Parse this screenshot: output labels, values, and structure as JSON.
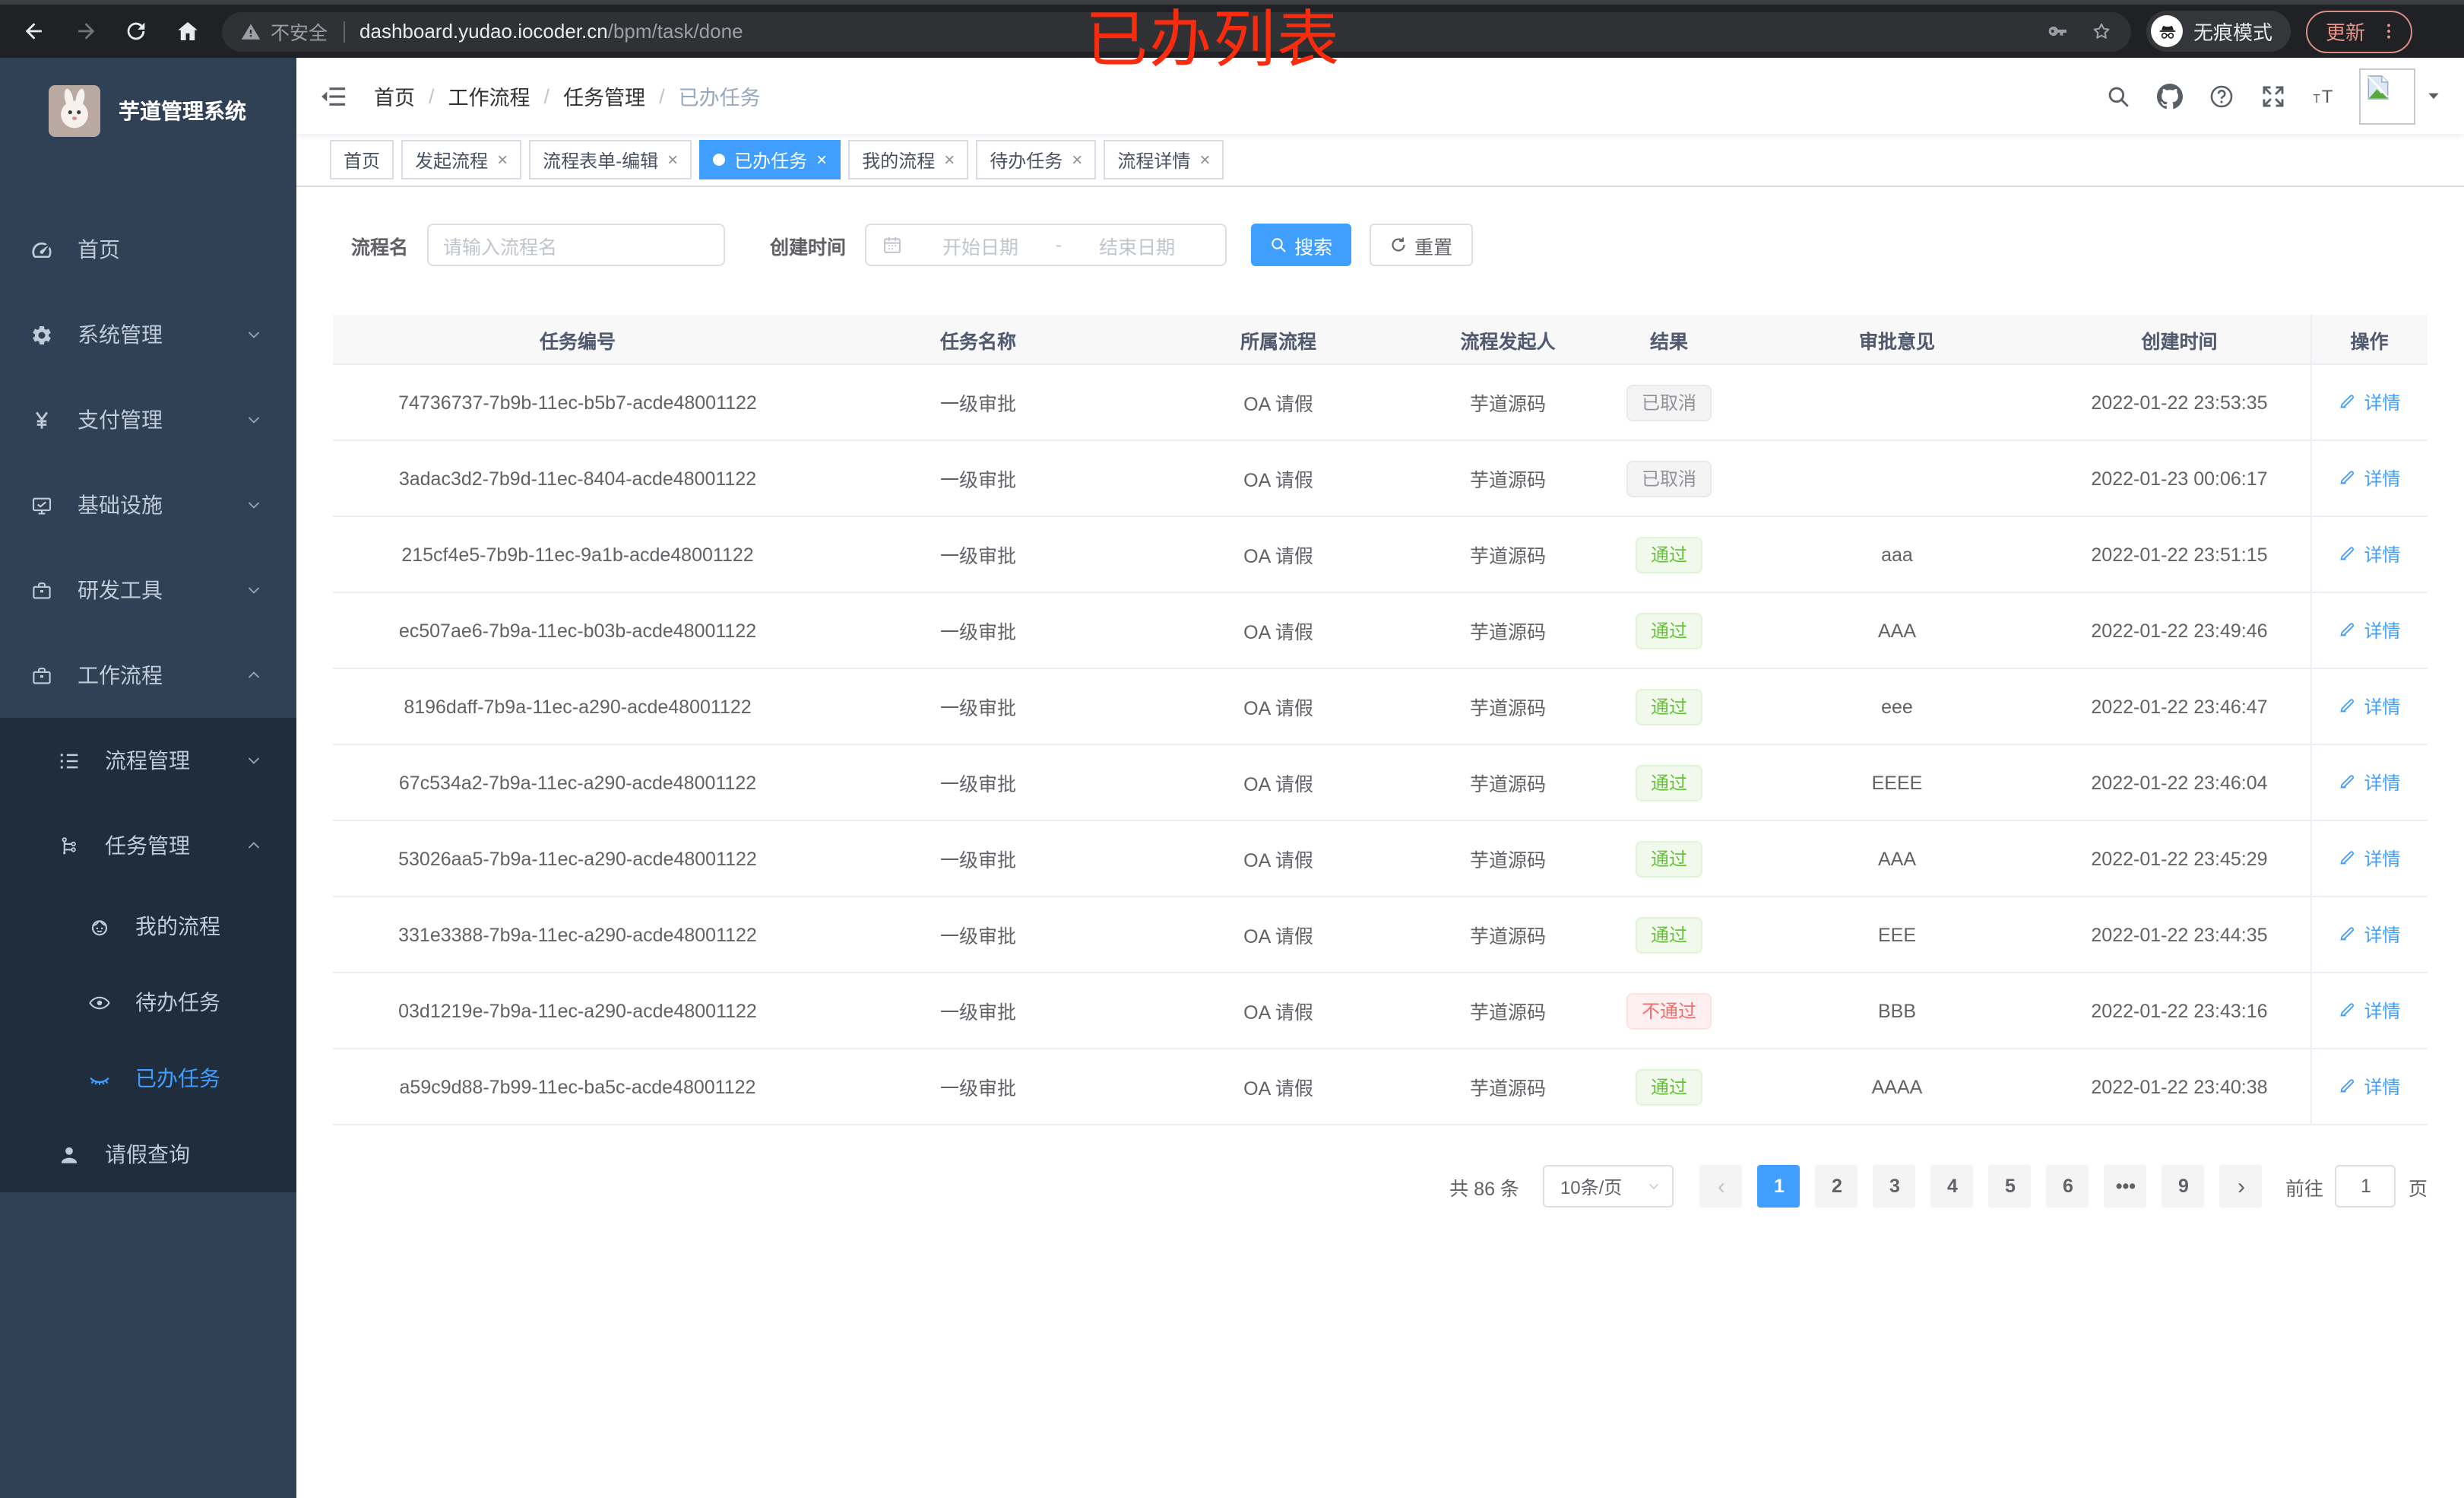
{
  "colors": {
    "accent": "#409eff",
    "success": "#67c23a",
    "danger": "#f56c6c",
    "info": "#909399",
    "sidebar_bg": "#304156",
    "submenu_bg": "#1f2d3d",
    "annotation": "#fd2b0d",
    "update_button": "#e8968c"
  },
  "browser": {
    "nav_icons": [
      "back-icon",
      "forward-icon",
      "reload-icon",
      "home-icon"
    ],
    "security_label": "不安全",
    "url_host": "dashboard.yudao.iocoder.cn",
    "url_path": "/bpm/task/done",
    "url_icons": [
      "key-icon",
      "star-icon"
    ],
    "incognito_label": "无痕模式",
    "update_label": "更新"
  },
  "annotation": {
    "text": "已办列表"
  },
  "sidebar": {
    "logo_icon": "rabbit-logo",
    "title": "芋道管理系统",
    "items": [
      {
        "key": "home",
        "icon": "gauge-icon",
        "label": "首页",
        "level": 1,
        "sub": false,
        "chevron": null,
        "active": false
      },
      {
        "key": "system",
        "icon": "gear-icon",
        "label": "系统管理",
        "level": 1,
        "sub": false,
        "chevron": "down",
        "active": false
      },
      {
        "key": "payment",
        "icon": "yen-icon",
        "label": "支付管理",
        "level": 1,
        "sub": false,
        "chevron": "down",
        "active": false
      },
      {
        "key": "infra",
        "icon": "monitor-icon",
        "label": "基础设施",
        "level": 1,
        "sub": false,
        "chevron": "down",
        "active": false
      },
      {
        "key": "devtools",
        "icon": "toolbox-icon",
        "label": "研发工具",
        "level": 1,
        "sub": false,
        "chevron": "down",
        "active": false
      },
      {
        "key": "workflow",
        "icon": "briefcase-icon",
        "label": "工作流程",
        "level": 1,
        "sub": false,
        "chevron": "up",
        "active": false
      },
      {
        "key": "process-mgmt",
        "icon": "list-icon",
        "label": "流程管理",
        "level": 2,
        "sub": true,
        "chevron": "down",
        "active": false
      },
      {
        "key": "task-mgmt",
        "icon": "flow-icon",
        "label": "任务管理",
        "level": 2,
        "sub": true,
        "chevron": "up",
        "active": false
      },
      {
        "key": "my-process",
        "icon": "robot-icon",
        "label": "我的流程",
        "level": 3,
        "sub": true,
        "chevron": null,
        "active": false
      },
      {
        "key": "todo-tasks",
        "icon": "eye-icon",
        "label": "待办任务",
        "level": 3,
        "sub": true,
        "chevron": null,
        "active": false
      },
      {
        "key": "done-tasks",
        "icon": "eye-closed-icon",
        "label": "已办任务",
        "level": 3,
        "sub": true,
        "chevron": null,
        "active": true
      },
      {
        "key": "leave-query",
        "icon": "user-icon",
        "label": "请假查询",
        "level": 2,
        "sub": true,
        "chevron": null,
        "active": false
      }
    ]
  },
  "navbar": {
    "breadcrumb": [
      "首页",
      "工作流程",
      "任务管理",
      "已办任务"
    ],
    "icons": [
      "search-icon",
      "github-icon",
      "help-icon",
      "fullscreen-icon",
      "font-size-icon"
    ],
    "avatar_icon": "image-placeholder-icon"
  },
  "tabs": [
    {
      "label": "首页",
      "closable": false,
      "active": false
    },
    {
      "label": "发起流程",
      "closable": true,
      "active": false
    },
    {
      "label": "流程表单-编辑",
      "closable": true,
      "active": false
    },
    {
      "label": "已办任务",
      "closable": true,
      "active": true
    },
    {
      "label": "我的流程",
      "closable": true,
      "active": false
    },
    {
      "label": "待办任务",
      "closable": true,
      "active": false
    },
    {
      "label": "流程详情",
      "closable": true,
      "active": false
    }
  ],
  "filters": {
    "name_label": "流程名",
    "name_placeholder": "请输入流程名",
    "time_label": "创建时间",
    "start_placeholder": "开始日期",
    "range_separator": "-",
    "end_placeholder": "结束日期",
    "search_label": "搜索",
    "reset_label": "重置"
  },
  "table": {
    "columns": [
      "任务编号",
      "任务名称",
      "所属流程",
      "流程发起人",
      "结果",
      "审批意见",
      "创建时间",
      "操作"
    ],
    "detail_label": "详情",
    "rows": [
      {
        "id": "74736737-7b9b-11ec-b5b7-acde48001122",
        "name": "一级审批",
        "process": "OA 请假",
        "starter": "芋道源码",
        "result": "已取消",
        "result_type": "info",
        "comment": "",
        "created": "2022-01-22 23:53:35"
      },
      {
        "id": "3adac3d2-7b9d-11ec-8404-acde48001122",
        "name": "一级审批",
        "process": "OA 请假",
        "starter": "芋道源码",
        "result": "已取消",
        "result_type": "info",
        "comment": "",
        "created": "2022-01-23 00:06:17"
      },
      {
        "id": "215cf4e5-7b9b-11ec-9a1b-acde48001122",
        "name": "一级审批",
        "process": "OA 请假",
        "starter": "芋道源码",
        "result": "通过",
        "result_type": "success",
        "comment": "aaa",
        "created": "2022-01-22 23:51:15"
      },
      {
        "id": "ec507ae6-7b9a-11ec-b03b-acde48001122",
        "name": "一级审批",
        "process": "OA 请假",
        "starter": "芋道源码",
        "result": "通过",
        "result_type": "success",
        "comment": "AAA",
        "created": "2022-01-22 23:49:46"
      },
      {
        "id": "8196daff-7b9a-11ec-a290-acde48001122",
        "name": "一级审批",
        "process": "OA 请假",
        "starter": "芋道源码",
        "result": "通过",
        "result_type": "success",
        "comment": "eee",
        "created": "2022-01-22 23:46:47"
      },
      {
        "id": "67c534a2-7b9a-11ec-a290-acde48001122",
        "name": "一级审批",
        "process": "OA 请假",
        "starter": "芋道源码",
        "result": "通过",
        "result_type": "success",
        "comment": "EEEE",
        "created": "2022-01-22 23:46:04"
      },
      {
        "id": "53026aa5-7b9a-11ec-a290-acde48001122",
        "name": "一级审批",
        "process": "OA 请假",
        "starter": "芋道源码",
        "result": "通过",
        "result_type": "success",
        "comment": "AAA",
        "created": "2022-01-22 23:45:29"
      },
      {
        "id": "331e3388-7b9a-11ec-a290-acde48001122",
        "name": "一级审批",
        "process": "OA 请假",
        "starter": "芋道源码",
        "result": "通过",
        "result_type": "success",
        "comment": "EEE",
        "created": "2022-01-22 23:44:35"
      },
      {
        "id": "03d1219e-7b9a-11ec-a290-acde48001122",
        "name": "一级审批",
        "process": "OA 请假",
        "starter": "芋道源码",
        "result": "不通过",
        "result_type": "danger",
        "comment": "BBB",
        "created": "2022-01-22 23:43:16"
      },
      {
        "id": "a59c9d88-7b99-11ec-ba5c-acde48001122",
        "name": "一级审批",
        "process": "OA 请假",
        "starter": "芋道源码",
        "result": "通过",
        "result_type": "success",
        "comment": "AAAA",
        "created": "2022-01-22 23:40:38"
      }
    ]
  },
  "pagination": {
    "total": "共 86 条",
    "page_size": "10条/页",
    "prev_icon": "chevron-left-icon",
    "next_icon": "chevron-right-icon",
    "pages": [
      {
        "label": "1",
        "active": true,
        "ellipsis": false
      },
      {
        "label": "2",
        "active": false,
        "ellipsis": false
      },
      {
        "label": "3",
        "active": false,
        "ellipsis": false
      },
      {
        "label": "4",
        "active": false,
        "ellipsis": false
      },
      {
        "label": "5",
        "active": false,
        "ellipsis": false
      },
      {
        "label": "6",
        "active": false,
        "ellipsis": false
      },
      {
        "label": "•••",
        "active": false,
        "ellipsis": true
      },
      {
        "label": "9",
        "active": false,
        "ellipsis": false
      }
    ],
    "goto_prefix": "前往",
    "goto_value": "1",
    "goto_suffix": "页"
  }
}
